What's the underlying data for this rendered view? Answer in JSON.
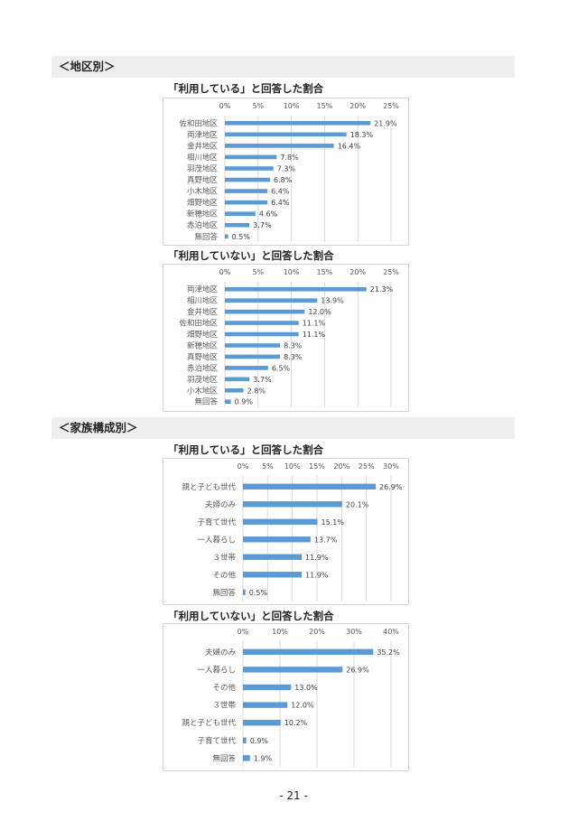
{
  "sections": [
    {
      "label": "＜地区別＞"
    },
    {
      "label": "＜家族構成別＞"
    }
  ],
  "page_number": "- 21 -",
  "bar_color": "#5b9bd5",
  "chart_data": [
    {
      "type": "bar",
      "orientation": "horizontal",
      "title": "「利用している」と回答した割合",
      "categories": [
        "佐和田地区",
        "両津地区",
        "金井地区",
        "相川地区",
        "羽茂地区",
        "真野地区",
        "小木地区",
        "畑野地区",
        "新穂地区",
        "赤泊地区",
        "無回答"
      ],
      "values": [
        21.9,
        18.3,
        16.4,
        7.8,
        7.3,
        6.8,
        6.4,
        6.4,
        4.6,
        3.7,
        0.5
      ],
      "value_labels": [
        "21.9%",
        "18.3%",
        "16.4%",
        "7.8%",
        "7.3%",
        "6.8%",
        "6.4%",
        "6.4%",
        "4.6%",
        "3.7%",
        "0.5%"
      ],
      "xlim": [
        0,
        25
      ],
      "ticks": [
        "0%",
        "5%",
        "10%",
        "15%",
        "20%",
        "25%"
      ],
      "tick_values": [
        0,
        5,
        10,
        15,
        20,
        25
      ],
      "grid": true
    },
    {
      "type": "bar",
      "orientation": "horizontal",
      "title": "「利用していない」と回答した割合",
      "categories": [
        "両津地区",
        "相川地区",
        "金井地区",
        "佐和田地区",
        "畑野地区",
        "新穂地区",
        "真野地区",
        "赤泊地区",
        "羽茂地区",
        "小木地区",
        "無回答"
      ],
      "values": [
        21.3,
        13.9,
        12.0,
        11.1,
        11.1,
        8.3,
        8.3,
        6.5,
        3.7,
        2.8,
        0.9
      ],
      "value_labels": [
        "21.3%",
        "13.9%",
        "12.0%",
        "11.1%",
        "11.1%",
        "8.3%",
        "8.3%",
        "6.5%",
        "3.7%",
        "2.8%",
        "0.9%"
      ],
      "xlim": [
        0,
        25
      ],
      "ticks": [
        "0%",
        "5%",
        "10%",
        "15%",
        "20%",
        "25%"
      ],
      "tick_values": [
        0,
        5,
        10,
        15,
        20,
        25
      ],
      "grid": true
    },
    {
      "type": "bar",
      "orientation": "horizontal",
      "title": "「利用している」と回答した割合",
      "categories": [
        "親と子ども世代",
        "夫婦のみ",
        "子育て世代",
        "一人暮らし",
        "３世帯",
        "その他",
        "無回答"
      ],
      "values": [
        26.9,
        20.1,
        15.1,
        13.7,
        11.9,
        11.9,
        0.5
      ],
      "value_labels": [
        "26.9%",
        "20.1%",
        "15.1%",
        "13.7%",
        "11.9%",
        "11.9%",
        "0.5%"
      ],
      "xlim": [
        0,
        30
      ],
      "ticks": [
        "0%",
        "5%",
        "10%",
        "15%",
        "20%",
        "25%",
        "30%"
      ],
      "tick_values": [
        0,
        5,
        10,
        15,
        20,
        25,
        30
      ],
      "grid": true
    },
    {
      "type": "bar",
      "orientation": "horizontal",
      "title": "「利用していない」と回答した割合",
      "categories": [
        "夫婦のみ",
        "一人暮らし",
        "その他",
        "３世帯",
        "親と子ども世代",
        "子育て世代",
        "無回答"
      ],
      "values": [
        35.2,
        26.9,
        13.0,
        12.0,
        10.2,
        0.9,
        1.9
      ],
      "value_labels": [
        "35.2%",
        "26.9%",
        "13.0%",
        "12.0%",
        "10.2%",
        "0.9%",
        "1.9%"
      ],
      "xlim": [
        0,
        40
      ],
      "ticks": [
        "0%",
        "10%",
        "20%",
        "30%",
        "40%"
      ],
      "tick_values": [
        0,
        10,
        20,
        30,
        40
      ],
      "grid": true
    }
  ]
}
